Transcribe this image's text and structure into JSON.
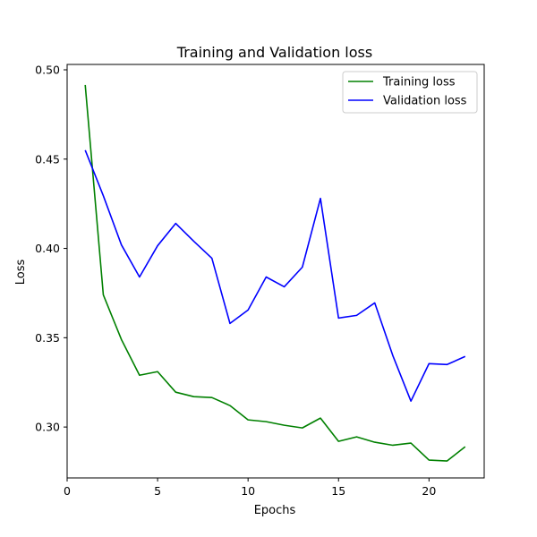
{
  "chart_data": {
    "type": "line",
    "title": "Training and Validation loss",
    "xlabel": "Epochs",
    "ylabel": "Loss",
    "xlim": [
      0,
      23.05
    ],
    "ylim": [
      0.2715,
      0.503
    ],
    "xticks": [
      0,
      5,
      10,
      15,
      20
    ],
    "yticks": [
      0.3,
      0.35,
      0.4,
      0.45,
      0.5
    ],
    "ytick_labels": [
      "0.30",
      "0.35",
      "0.40",
      "0.45",
      "0.50"
    ],
    "grid": false,
    "legend_position": "top-right",
    "x": [
      1,
      2,
      3,
      4,
      5,
      6,
      7,
      8,
      9,
      10,
      11,
      12,
      13,
      14,
      15,
      16,
      17,
      18,
      19,
      20,
      21,
      22
    ],
    "series": [
      {
        "name": "Training loss",
        "color": "#008000",
        "values": [
          0.4915,
          0.374,
          0.349,
          0.329,
          0.331,
          0.3195,
          0.317,
          0.3165,
          0.312,
          0.304,
          0.303,
          0.301,
          0.2995,
          0.305,
          0.292,
          0.2945,
          0.2915,
          0.2898,
          0.291,
          0.2815,
          0.281,
          0.289
        ]
      },
      {
        "name": "Validation loss",
        "color": "#0000ff",
        "values": [
          0.455,
          0.4295,
          0.402,
          0.384,
          0.4015,
          0.414,
          0.404,
          0.3945,
          0.358,
          0.3655,
          0.384,
          0.3785,
          0.3895,
          0.428,
          0.361,
          0.3625,
          0.3695,
          0.34,
          0.3145,
          0.3355,
          0.335,
          0.3395
        ]
      }
    ]
  }
}
